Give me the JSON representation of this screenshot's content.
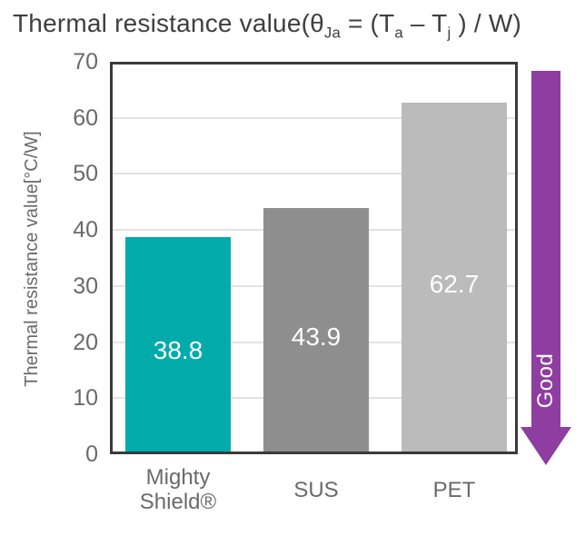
{
  "title": {
    "part1": "Thermal resistance value(θ",
    "sub1": "Ja",
    "part2": " = (T",
    "sub2": "a",
    "part3": " – T",
    "sub3": "j",
    "part4": " ) / W)"
  },
  "chart_data": {
    "type": "bar",
    "title": "Thermal resistance value(θJa = (Ta – Tj ) / W)",
    "ylabel": "Thermal resistance value[°C/W]",
    "xlabel": "",
    "ylim": [
      0,
      70
    ],
    "yticks": [
      0,
      10,
      20,
      30,
      40,
      50,
      60,
      70
    ],
    "grid": true,
    "legend": "none",
    "categories": [
      "Mighty Shield®",
      "SUS",
      "PET"
    ],
    "category_lines": [
      [
        "Mighty",
        "Shield®"
      ],
      [
        "SUS"
      ],
      [
        "PET"
      ]
    ],
    "values": [
      38.8,
      43.9,
      62.7
    ],
    "value_labels": [
      "38.8",
      "43.9",
      "62.7"
    ],
    "value_label_color": "#FFFFFF",
    "bar_colors": [
      "#00ABA9",
      "#8E8E8E",
      "#BBBBBB"
    ],
    "annotation": {
      "label": "Good",
      "direction": "down",
      "color": "#8E3DA0",
      "label_color": "#FFFFFF"
    }
  },
  "colors": {
    "title": "#3F3F3F",
    "axis-text": "#6A6A6A",
    "frame": "#3A3A3A",
    "gridline": "#E2E2E2",
    "background": "#FFFFFF",
    "accent-teal": "#00ABA9",
    "arrow-purple": "#8E3DA0"
  }
}
